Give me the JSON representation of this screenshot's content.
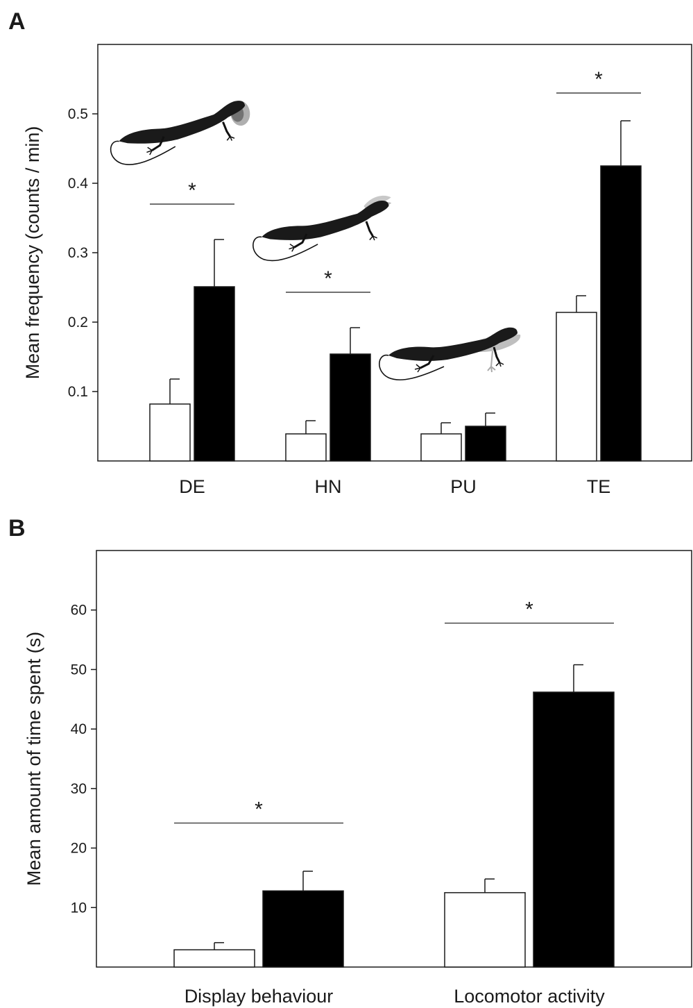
{
  "chart_data": [
    {
      "panel": "A",
      "type": "bar",
      "ylabel": "Mean frequency (counts / min)",
      "xlabel": "",
      "ylim": [
        0,
        0.6
      ],
      "yticks": [
        "0.1",
        "0.2",
        "0.3",
        "0.4",
        "0.5"
      ],
      "categories": [
        "DE",
        "HN",
        "PU",
        "TE"
      ],
      "series": [
        {
          "fill": "#ffffff",
          "values": [
            0.082,
            0.039,
            0.039,
            0.214
          ],
          "errors": [
            0.036,
            0.019,
            0.016,
            0.024
          ]
        },
        {
          "fill": "#000000",
          "values": [
            0.251,
            0.154,
            0.05,
            0.425
          ],
          "errors": [
            0.068,
            0.038,
            0.019,
            0.065
          ]
        }
      ],
      "significance": [
        {
          "category": "DE",
          "label": "*",
          "at": 0.37
        },
        {
          "category": "HN",
          "label": "*",
          "at": 0.243
        },
        {
          "category": "TE",
          "label": "*",
          "at": 0.53
        }
      ],
      "illustrations": [
        {
          "category": "DE",
          "icon": "lizard-dewlap-extension-icon"
        },
        {
          "category": "HN",
          "icon": "lizard-head-nod-icon"
        },
        {
          "category": "PU",
          "icon": "lizard-push-up-icon"
        }
      ]
    },
    {
      "panel": "B",
      "type": "bar",
      "ylabel": "Mean amount of time spent (s)",
      "xlabel": "",
      "ylim": [
        0,
        70
      ],
      "yticks": [
        "10",
        "20",
        "30",
        "40",
        "50",
        "60"
      ],
      "categories": [
        "Display behaviour",
        "Locomotor activity"
      ],
      "series": [
        {
          "fill": "#ffffff",
          "values": [
            2.9,
            12.5
          ],
          "errors": [
            1.2,
            2.3
          ]
        },
        {
          "fill": "#000000",
          "values": [
            12.8,
            46.2
          ],
          "errors": [
            3.3,
            4.6
          ]
        }
      ],
      "significance": [
        {
          "category": "Display behaviour",
          "label": "*",
          "at": 24.2
        },
        {
          "category": "Locomotor activity",
          "label": "*",
          "at": 57.8
        }
      ]
    }
  ]
}
